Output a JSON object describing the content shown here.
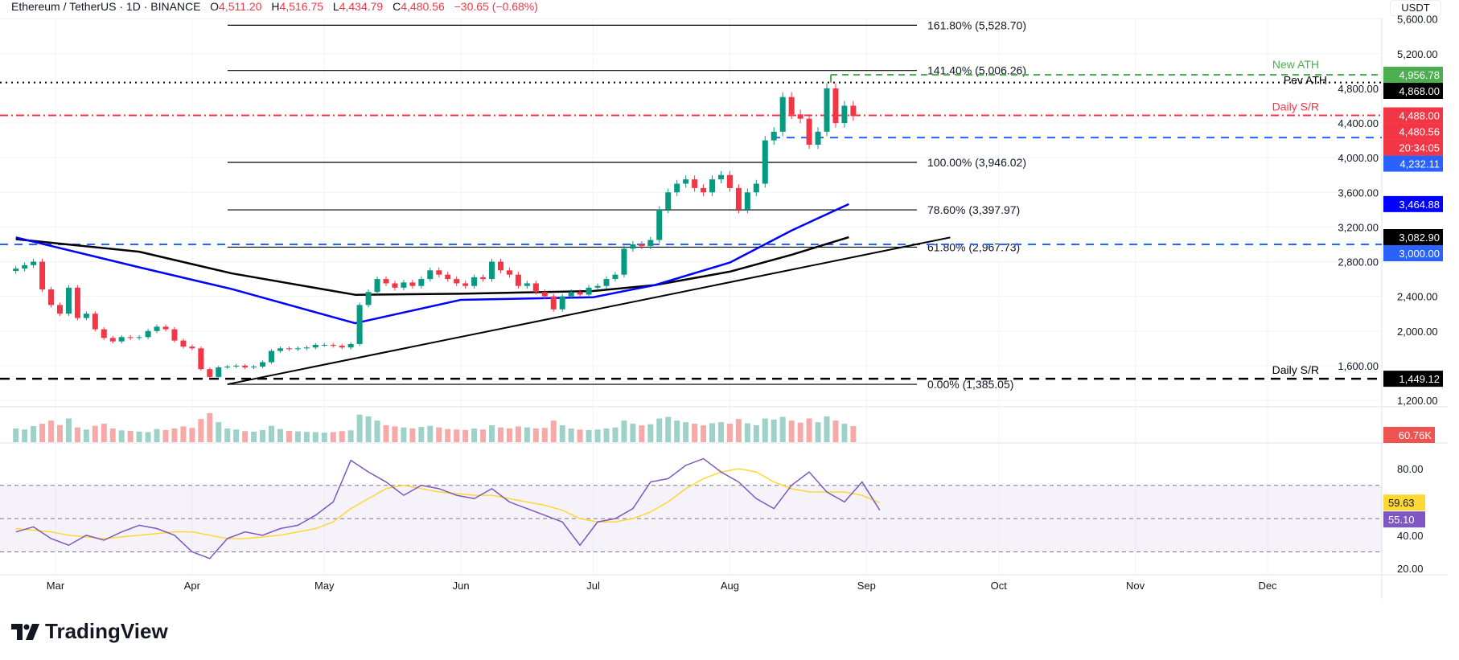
{
  "header": {
    "symbol": "Ethereum / TetherUS · 1D · BINANCE",
    "open_label": "O",
    "open": "4,511.20",
    "high_label": "H",
    "high": "4,516.75",
    "low_label": "L",
    "low": "4,434.79",
    "close_label": "C",
    "close": "4,480.56",
    "change": "−30.65 (−0.68%)"
  },
  "currency": "USDT",
  "brand": "TradingView",
  "colors": {
    "up": "#089981",
    "down": "#f23645",
    "ema100": "#0000ff",
    "ema200": "#000000",
    "rsi": "#7e57c2",
    "rsi_ma": "#fdd835",
    "ath": "#4caf50",
    "support_blue": "#2962ff"
  },
  "chart_data": [
    {
      "type": "candlestick",
      "pane": "price",
      "start_date": "2025-02-20",
      "step_days": 2,
      "closes": [
        2720,
        2760,
        2800,
        2480,
        2300,
        2200,
        2500,
        2150,
        2200,
        2020,
        1920,
        1880,
        1930,
        1920,
        1930,
        2000,
        2050,
        2020,
        1890,
        1820,
        1800,
        1560,
        1470,
        1580,
        1590,
        1600,
        1580,
        1590,
        1640,
        1770,
        1800,
        1790,
        1800,
        1810,
        1840,
        1840,
        1830,
        1810,
        1850,
        2300,
        2450,
        2600,
        2550,
        2500,
        2560,
        2520,
        2600,
        2700,
        2650,
        2600,
        2550,
        2520,
        2620,
        2600,
        2800,
        2700,
        2650,
        2520,
        2550,
        2450,
        2400,
        2250,
        2400,
        2450,
        2420,
        2500,
        2520,
        2600,
        2650,
        2950,
        3000,
        2980,
        3050,
        3400,
        3600,
        3700,
        3750,
        3650,
        3600,
        3750,
        3800,
        3650,
        3400,
        3600,
        3700,
        4200,
        4300,
        4700,
        4500,
        4450,
        4150,
        4300,
        4800,
        4400,
        4600,
        4480
      ],
      "yaxis_ticks": [
        "5,600.00",
        "5,200.00",
        "4,800.00",
        "4,400.00",
        "4,000.00",
        "3,600.00",
        "3,200.00",
        "2,800.00",
        "2,400.00",
        "2,000.00",
        "1,600.00",
        "1,200.00"
      ],
      "ylim": [
        1200,
        5600
      ],
      "xaxis_ticks": [
        "Mar",
        "Apr",
        "May",
        "Jun",
        "Jul",
        "Aug",
        "Sep",
        "Oct",
        "Nov",
        "Dec"
      ],
      "ema100": [
        [
          "2025-02-20",
          3080
        ],
        [
          "2025-03-20",
          2735
        ],
        [
          "2025-04-10",
          2484
        ],
        [
          "2025-05-08",
          2090
        ],
        [
          "2025-06-01",
          2360
        ],
        [
          "2025-07-01",
          2390
        ],
        [
          "2025-07-15",
          2530
        ],
        [
          "2025-08-01",
          2790
        ],
        [
          "2025-08-15",
          3160
        ],
        [
          "2025-08-28",
          3465
        ]
      ],
      "ema200": [
        [
          "2025-02-20",
          3060
        ],
        [
          "2025-03-20",
          2915
        ],
        [
          "2025-04-10",
          2665
        ],
        [
          "2025-05-08",
          2418
        ],
        [
          "2025-06-01",
          2430
        ],
        [
          "2025-07-01",
          2462
        ],
        [
          "2025-07-15",
          2530
        ],
        [
          "2025-08-01",
          2685
        ],
        [
          "2025-08-15",
          2880
        ],
        [
          "2025-08-28",
          3083
        ]
      ],
      "fib_levels": [
        {
          "label": "161.80% (5,528.70)",
          "value": 5528.7
        },
        {
          "label": "141.40% (5,006.26)",
          "value": 5006.26
        },
        {
          "label": "100.00% (3,946.02)",
          "value": 3946.02
        },
        {
          "label": "78.60% (3,397.97)",
          "value": 3397.97
        },
        {
          "label": "61.80% (2,967.73)",
          "value": 2967.73
        },
        {
          "label": "0.00% (1,385.05)",
          "value": 1385.05
        }
      ],
      "trendline": [
        [
          "2025-04-09",
          1385
        ],
        [
          "2025-09-20",
          3080
        ]
      ],
      "annotations": [
        {
          "text": "New ATH",
          "value": 4956.78,
          "color": "#4caf50"
        },
        {
          "text": "Pev ATH",
          "value": 4868.0,
          "color": "#000000"
        },
        {
          "text": "Daily S/R",
          "value": 4488.0,
          "color": "#f23645"
        },
        {
          "text": "Daily S/R",
          "value": 1449.12,
          "color": "#000000"
        }
      ],
      "price_labels": [
        {
          "text": "4,956.78",
          "value": 4956.78,
          "bg": "#4caf50"
        },
        {
          "text": "4,868.00",
          "value": 4868.0,
          "bg": "#000000"
        },
        {
          "text": "4,488.00",
          "value": 4488.0,
          "bg": "#f23645"
        },
        {
          "text": "4,480.56",
          "value": 4480.56,
          "bg": "#f23645"
        },
        {
          "text": "20:34:05",
          "value": 4380,
          "bg": "#f23645"
        },
        {
          "text": "4,232.11",
          "value": 4232.11,
          "bg": "#2962ff"
        },
        {
          "text": "3,464.88",
          "value": 3464.88,
          "bg": "#0000ff"
        },
        {
          "text": "3,082.90",
          "value": 3082.9,
          "bg": "#000000"
        },
        {
          "text": "3,000.00",
          "value": 3000.0,
          "bg": "#2962ff"
        },
        {
          "text": "1,449.12",
          "value": 1449.12,
          "bg": "#000000"
        }
      ]
    },
    {
      "type": "bar",
      "pane": "volume",
      "values": [
        520,
        480,
        610,
        700,
        820,
        650,
        900,
        560,
        480,
        620,
        700,
        520,
        450,
        430,
        400,
        380,
        500,
        460,
        520,
        600,
        540,
        880,
        1100,
        760,
        520,
        480,
        420,
        400,
        460,
        620,
        500,
        430,
        410,
        390,
        380,
        360,
        380,
        420,
        450,
        1050,
        980,
        820,
        640,
        600,
        560,
        520,
        580,
        620,
        560,
        500,
        480,
        460,
        520,
        480,
        640,
        560,
        520,
        600,
        560,
        520,
        540,
        820,
        640,
        520,
        480,
        460,
        480,
        520,
        560,
        820,
        700,
        640,
        680,
        900,
        960,
        820,
        760,
        700,
        640,
        720,
        760,
        700,
        880,
        720,
        640,
        900,
        860,
        960,
        820,
        740,
        900,
        760,
        980,
        820,
        700,
        608
      ],
      "last_label": "60.76K"
    },
    {
      "type": "line",
      "pane": "rsi",
      "start_date": "2025-02-20",
      "step_days": 4,
      "rsi": [
        42,
        45,
        38,
        34,
        40,
        37,
        42,
        46,
        44,
        40,
        30,
        26,
        38,
        42,
        40,
        44,
        46,
        52,
        60,
        85,
        78,
        72,
        64,
        70,
        68,
        64,
        62,
        68,
        60,
        56,
        52,
        48,
        34,
        48,
        50,
        56,
        72,
        74,
        82,
        86,
        78,
        72,
        62,
        56,
        70,
        78,
        66,
        60,
        72,
        55.1
      ],
      "rsi_ma": [
        44,
        43,
        42,
        40,
        39,
        38,
        39,
        40,
        41,
        42,
        42,
        40,
        38,
        38,
        39,
        40,
        42,
        44,
        48,
        56,
        62,
        68,
        70,
        68,
        66,
        65,
        64,
        64,
        62,
        60,
        58,
        55,
        50,
        48,
        48,
        50,
        54,
        60,
        68,
        74,
        78,
        80,
        78,
        72,
        68,
        66,
        66,
        66,
        64,
        59.63
      ],
      "band": [
        30,
        70
      ],
      "midline": 50,
      "yaxis_ticks": [
        "80.00",
        "40.00",
        "20.00"
      ],
      "last_labels": [
        {
          "text": "59.63",
          "bg": "#fdd835"
        },
        {
          "text": "55.10",
          "bg": "#7e57c2"
        }
      ]
    }
  ]
}
